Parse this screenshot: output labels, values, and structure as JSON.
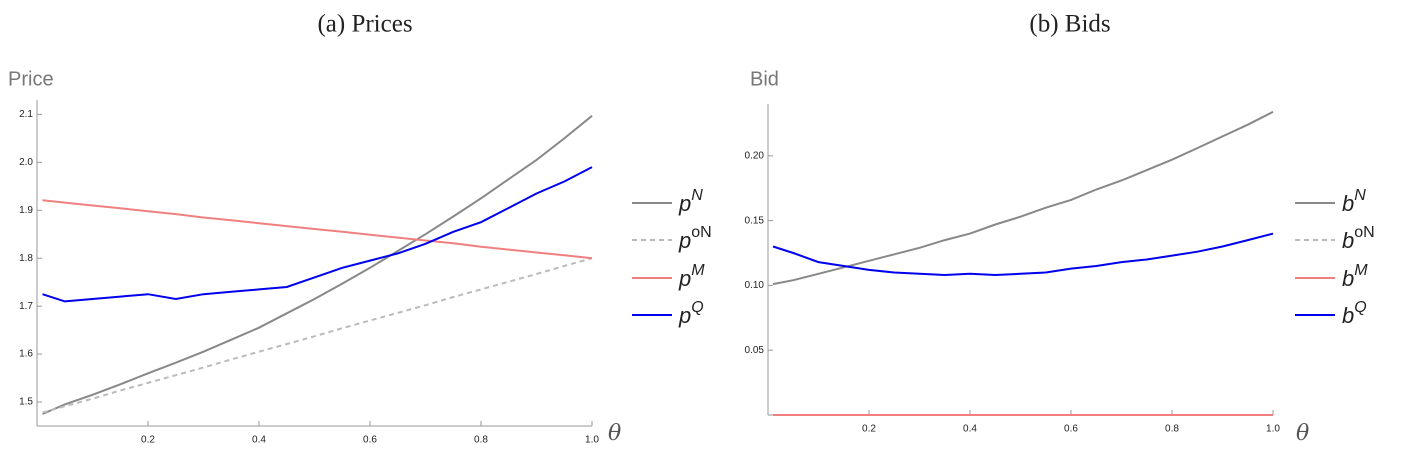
{
  "chart_data": [
    {
      "type": "line",
      "title": "(a) Prices",
      "y_label": "Price",
      "x_label": "θ",
      "x": [
        0.01,
        0.05,
        0.1,
        0.15,
        0.2,
        0.25,
        0.3,
        0.35,
        0.4,
        0.45,
        0.5,
        0.55,
        0.6,
        0.65,
        0.7,
        0.75,
        0.8,
        0.85,
        0.9,
        0.95,
        1.0
      ],
      "series": [
        {
          "name": "pN",
          "color": "#888888",
          "dash": false,
          "values": [
            1.475,
            1.495,
            1.515,
            1.537,
            1.56,
            1.582,
            1.605,
            1.63,
            1.655,
            1.685,
            1.715,
            1.747,
            1.78,
            1.815,
            1.85,
            1.887,
            1.925,
            1.965,
            2.005,
            2.05,
            2.097
          ]
        },
        {
          "name": "poN",
          "color": "#bbbbbb",
          "dash": true,
          "values": [
            1.478,
            1.491,
            1.507,
            1.524,
            1.54,
            1.556,
            1.572,
            1.589,
            1.605,
            1.621,
            1.637,
            1.654,
            1.67,
            1.686,
            1.702,
            1.719,
            1.735,
            1.751,
            1.767,
            1.784,
            1.8
          ]
        },
        {
          "name": "pM",
          "color": "#f08080",
          "dash": false,
          "values": [
            1.921,
            1.916,
            1.91,
            1.904,
            1.898,
            1.892,
            1.885,
            1.879,
            1.873,
            1.867,
            1.861,
            1.855,
            1.849,
            1.843,
            1.837,
            1.831,
            1.824,
            1.818,
            1.812,
            1.806,
            1.8
          ]
        },
        {
          "name": "pQ",
          "color": "#0000ee",
          "dash": false,
          "values": [
            1.725,
            1.71,
            1.715,
            1.72,
            1.725,
            1.715,
            1.725,
            1.73,
            1.735,
            1.74,
            1.76,
            1.78,
            1.795,
            1.81,
            1.83,
            1.855,
            1.875,
            1.905,
            1.935,
            1.96,
            1.99
          ]
        }
      ],
      "xlim": [
        0,
        1
      ],
      "ylim": [
        1.45,
        2.13
      ],
      "xticks": [
        0.2,
        0.4,
        0.6,
        0.8,
        {
          "value": 1,
          "label": "1.0"
        }
      ],
      "yticks": [
        1.5,
        1.6,
        1.7,
        1.8,
        1.9,
        {
          "value": 2,
          "label": "2.0"
        },
        2.1
      ]
    },
    {
      "type": "line",
      "title": "(b) Bids",
      "y_label": "Bid",
      "x_label": "θ",
      "x": [
        0.01,
        0.05,
        0.1,
        0.15,
        0.2,
        0.25,
        0.3,
        0.35,
        0.4,
        0.45,
        0.5,
        0.55,
        0.6,
        0.65,
        0.7,
        0.75,
        0.8,
        0.85,
        0.9,
        0.95,
        1.0
      ],
      "series": [
        {
          "name": "bN",
          "color": "#888888",
          "dash": false,
          "values": [
            0.101,
            0.104,
            0.109,
            0.114,
            0.119,
            0.124,
            0.129,
            0.135,
            0.14,
            0.147,
            0.153,
            0.16,
            0.166,
            0.174,
            0.181,
            0.189,
            0.197,
            0.206,
            0.215,
            0.224,
            0.234
          ]
        },
        {
          "name": "boN",
          "color": "#bbbbbb",
          "dash": true,
          "values": [
            0,
            0,
            0,
            0,
            0,
            0,
            0,
            0,
            0,
            0,
            0,
            0,
            0,
            0,
            0,
            0,
            0,
            0,
            0,
            0,
            0
          ]
        },
        {
          "name": "bM",
          "color": "#f08080",
          "dash": false,
          "values": [
            0,
            0,
            0,
            0,
            0,
            0,
            0,
            0,
            0,
            0,
            0,
            0,
            0,
            0,
            0,
            0,
            0,
            0,
            0,
            0,
            0
          ]
        },
        {
          "name": "bQ",
          "color": "#0000ee",
          "dash": false,
          "values": [
            0.13,
            0.125,
            0.118,
            0.115,
            0.112,
            0.11,
            0.109,
            0.108,
            0.109,
            0.108,
            0.109,
            0.11,
            0.113,
            0.115,
            0.118,
            0.12,
            0.123,
            0.126,
            0.13,
            0.135,
            0.14
          ]
        }
      ],
      "xlim": [
        0,
        1
      ],
      "ylim": [
        0,
        0.24
      ],
      "xticks": [
        0.2,
        0.4,
        0.6,
        0.8,
        {
          "value": 1,
          "label": "1.0"
        }
      ],
      "yticks": [
        0.05,
        {
          "value": 0.1,
          "label": "0.10"
        },
        0.15,
        {
          "value": 0.2,
          "label": "0.20"
        }
      ]
    }
  ]
}
